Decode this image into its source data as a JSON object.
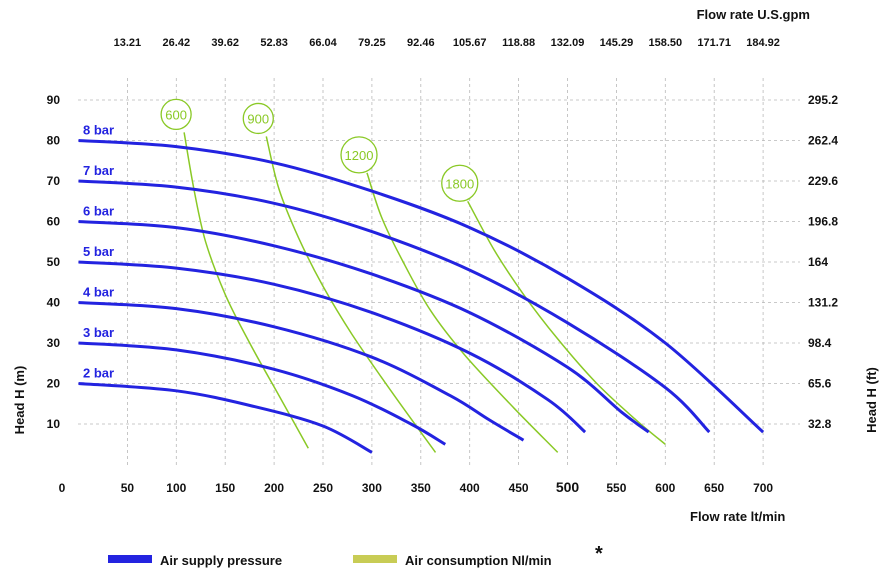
{
  "chart_data": {
    "type": "line",
    "top_axis_title": "Flow rate U.S.gpm",
    "top_ticks": [
      "13.21",
      "26.42",
      "39.62",
      "52.83",
      "66.04",
      "79.25",
      "92.46",
      "105.67",
      "118.88",
      "132.09",
      "145.29",
      "158.50",
      "171.71",
      "184.92"
    ],
    "xlabel": "Flow rate  lt/min",
    "ylabel_left": "Head H (m)",
    "ylabel_right": "Head H (ft)",
    "x_ticks": [
      "0",
      "50",
      "100",
      "150",
      "200",
      "250",
      "300",
      "350",
      "400",
      "450",
      "500",
      "550",
      "600",
      "650",
      "700"
    ],
    "y_ticks_left": [
      "10",
      "20",
      "30",
      "40",
      "50",
      "60",
      "70",
      "80",
      "90"
    ],
    "y_ticks_right": [
      "32.8",
      "65.6",
      "98.4",
      "131.2",
      "164",
      "196.8",
      "229.6",
      "262.4",
      "295.2"
    ],
    "xlim": [
      0,
      730
    ],
    "ylim": [
      0,
      97
    ],
    "grid": true,
    "pressure_color": "#2323e0",
    "air_color": "#8ac926",
    "pressure_series": [
      {
        "name": "8 bar",
        "points": [
          [
            0,
            80
          ],
          [
            100,
            78.5
          ],
          [
            200,
            74.5
          ],
          [
            300,
            67.5
          ],
          [
            400,
            58.5
          ],
          [
            500,
            46
          ],
          [
            600,
            30
          ],
          [
            700,
            8
          ]
        ]
      },
      {
        "name": "7 bar",
        "points": [
          [
            0,
            70
          ],
          [
            100,
            68.5
          ],
          [
            200,
            64.5
          ],
          [
            300,
            57.5
          ],
          [
            400,
            48
          ],
          [
            500,
            35
          ],
          [
            600,
            19
          ],
          [
            645,
            8
          ]
        ]
      },
      {
        "name": "6 bar",
        "points": [
          [
            0,
            60
          ],
          [
            100,
            58.5
          ],
          [
            200,
            54
          ],
          [
            300,
            47
          ],
          [
            400,
            37.5
          ],
          [
            500,
            24
          ],
          [
            555,
            13
          ],
          [
            583,
            8
          ]
        ]
      },
      {
        "name": "5 bar",
        "points": [
          [
            0,
            50
          ],
          [
            100,
            48.5
          ],
          [
            200,
            44.5
          ],
          [
            300,
            37.5
          ],
          [
            400,
            27.5
          ],
          [
            480,
            16
          ],
          [
            518,
            8
          ]
        ]
      },
      {
        "name": "4 bar",
        "points": [
          [
            0,
            40
          ],
          [
            100,
            38.5
          ],
          [
            200,
            34
          ],
          [
            300,
            26.5
          ],
          [
            380,
            17
          ],
          [
            420,
            11
          ],
          [
            455,
            6
          ]
        ]
      },
      {
        "name": "3 bar",
        "points": [
          [
            0,
            30
          ],
          [
            100,
            28.3
          ],
          [
            200,
            23.5
          ],
          [
            280,
            17
          ],
          [
            340,
            10
          ],
          [
            375,
            5
          ]
        ]
      },
      {
        "name": "2 bar",
        "points": [
          [
            0,
            20
          ],
          [
            100,
            18.2
          ],
          [
            180,
            14.3
          ],
          [
            250,
            9.5
          ],
          [
            300,
            3
          ]
        ]
      }
    ],
    "air_series": [
      {
        "name": "600",
        "points": [
          [
            108,
            82
          ],
          [
            118,
            68
          ],
          [
            130,
            55
          ],
          [
            150,
            42
          ],
          [
            175,
            30
          ],
          [
            205,
            17
          ],
          [
            235,
            4
          ]
        ]
      },
      {
        "name": "900",
        "points": [
          [
            192,
            81
          ],
          [
            205,
            68
          ],
          [
            225,
            56
          ],
          [
            250,
            44
          ],
          [
            280,
            32
          ],
          [
            320,
            18
          ],
          [
            365,
            3
          ]
        ]
      },
      {
        "name": "1200",
        "points": [
          [
            295,
            72
          ],
          [
            310,
            61
          ],
          [
            332,
            50
          ],
          [
            360,
            38
          ],
          [
            395,
            27
          ],
          [
            445,
            14
          ],
          [
            490,
            3
          ]
        ]
      },
      {
        "name": "1800",
        "points": [
          [
            398,
            65
          ],
          [
            425,
            53
          ],
          [
            455,
            42
          ],
          [
            490,
            31
          ],
          [
            530,
            20
          ],
          [
            570,
            11
          ],
          [
            600,
            5
          ]
        ]
      }
    ],
    "legend": [
      {
        "label": "Air supply pressure",
        "color": "#2323e0"
      },
      {
        "label": "Air consumption  Nl/min",
        "color": "#c8cc55"
      }
    ],
    "note": "*"
  }
}
